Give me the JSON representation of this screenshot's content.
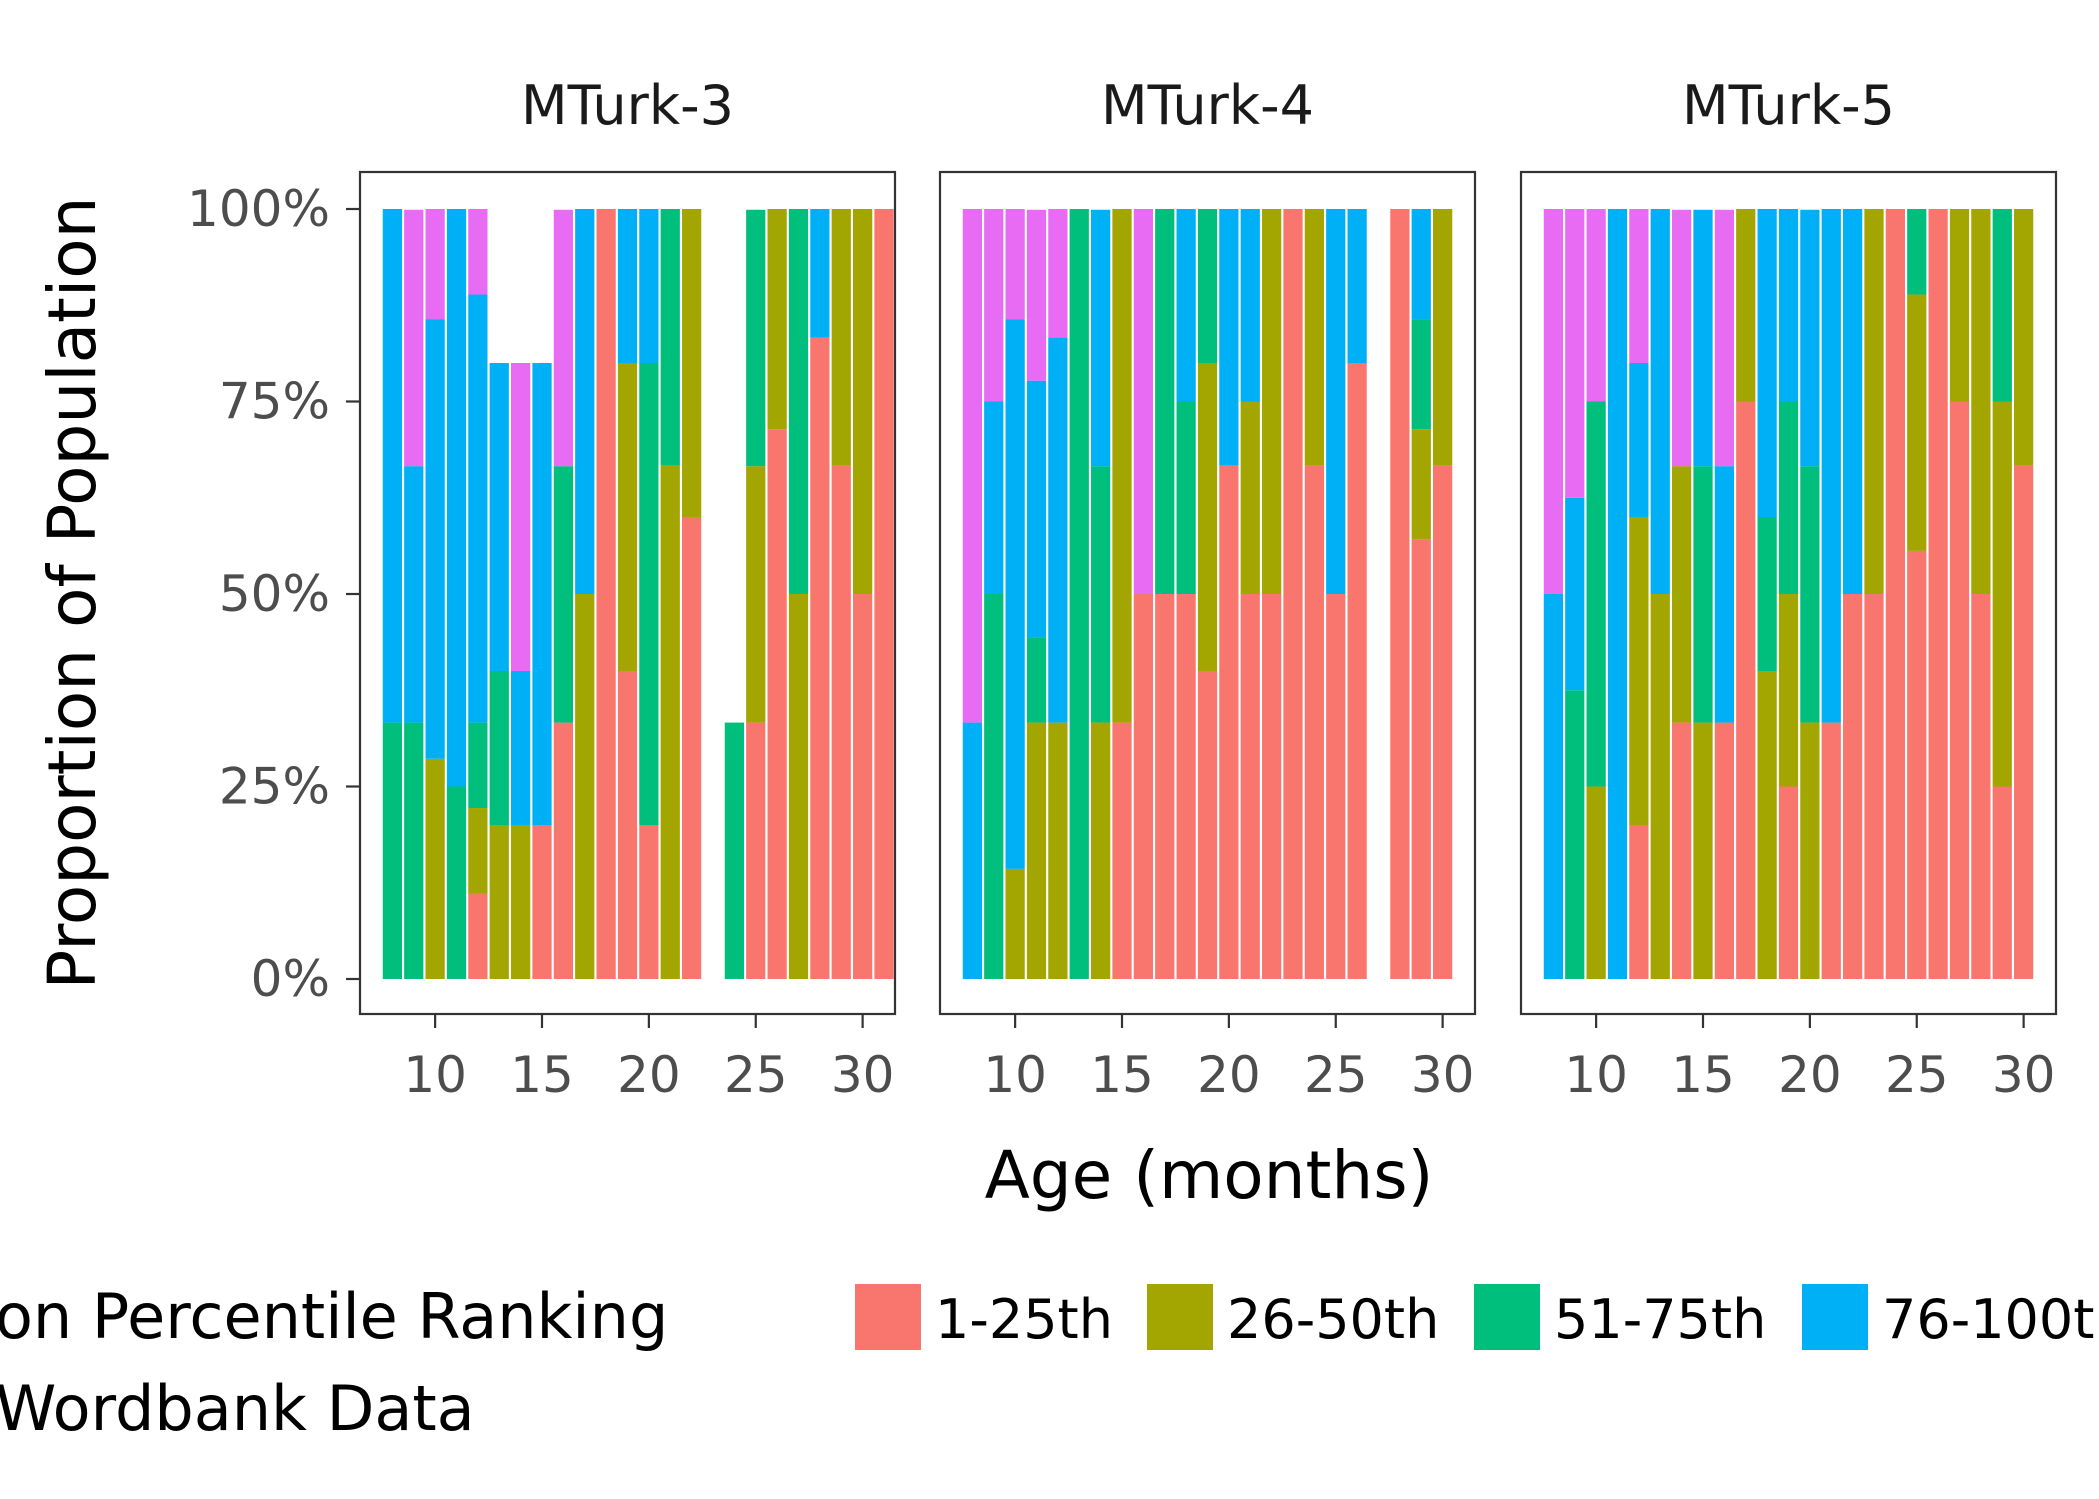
{
  "chart_data": {
    "type": "bar",
    "stacked": true,
    "xlabel": "Age (months)",
    "ylabel": "Proportion of Population",
    "ylim": [
      0,
      1
    ],
    "y_ticks": [
      "0%",
      "25%",
      "50%",
      "75%",
      "100%"
    ],
    "y_tick_values": [
      0,
      0.25,
      0.5,
      0.75,
      1
    ],
    "xlim": [
      7,
      31
    ],
    "x_ticks": [
      10,
      15,
      20,
      25,
      30
    ],
    "legend": {
      "title_lines": [
        "on Percentile Ranking",
        "Wordbank Data"
      ],
      "placement": "bottom",
      "entries": [
        {
          "label": "1-25th",
          "color": "#F8766D"
        },
        {
          "label": "26-50th",
          "color": "#A3A500"
        },
        {
          "label": "51-75th",
          "color": "#00BF7D"
        },
        {
          "label": "76-100t",
          "color": "#00B0F6"
        }
      ]
    },
    "series_colors": [
      "#F8766D",
      "#A3A500",
      "#00BF7D",
      "#00B0F6",
      "#E76BF3"
    ],
    "stack_order_note": "",
    "facets": [
      {
        "title": "MTurk-3",
        "bars": [
          {
            "age": 8,
            "props": [
              0,
              0,
              0.333,
              0.667,
              0
            ]
          },
          {
            "age": 9,
            "props": [
              0,
              0,
              0.333,
              0.333,
              0.333
            ]
          },
          {
            "age": 10,
            "props": [
              0,
              0.286,
              0,
              0.571,
              0.143
            ]
          },
          {
            "age": 11,
            "props": [
              0,
              0,
              0.25,
              0.75,
              0
            ]
          },
          {
            "age": 12,
            "props": [
              0.111,
              0.111,
              0.111,
              0.556,
              0.111
            ]
          },
          {
            "age": 13,
            "props": [
              0,
              0.2,
              0.2,
              0.4,
              0
            ]
          },
          {
            "age": 14,
            "props": [
              0,
              0.2,
              0,
              0.2,
              0.4
            ]
          },
          {
            "age": 15,
            "props": [
              0.2,
              0,
              0,
              0.6,
              0
            ]
          },
          {
            "age": 16,
            "props": [
              0.333,
              0,
              0.333,
              0,
              0.333
            ]
          },
          {
            "age": 17,
            "props": [
              0,
              0.5,
              0,
              0.5,
              0
            ]
          },
          {
            "age": 18,
            "props": [
              1,
              0,
              0,
              0,
              0
            ]
          },
          {
            "age": 19,
            "props": [
              0.4,
              0.4,
              0,
              0.2,
              0
            ]
          },
          {
            "age": 20,
            "props": [
              0.2,
              0,
              0.6,
              0.2,
              0
            ]
          },
          {
            "age": 21,
            "props": [
              0,
              0.667,
              0.333,
              0,
              0
            ]
          },
          {
            "age": 22,
            "props": [
              0.6,
              0.4,
              0,
              0,
              0
            ]
          },
          {
            "age": 24,
            "props": [
              0,
              0,
              0.333,
              0,
              0
            ]
          },
          {
            "age": 25,
            "props": [
              0.333,
              0.333,
              0.333,
              0,
              0
            ]
          },
          {
            "age": 26,
            "props": [
              0.714,
              0.286,
              0,
              0,
              0
            ]
          },
          {
            "age": 27,
            "props": [
              0,
              0.5,
              0.5,
              0,
              0
            ]
          },
          {
            "age": 28,
            "props": [
              0.833,
              0,
              0,
              0.167,
              0
            ]
          },
          {
            "age": 29,
            "props": [
              0.667,
              0.333,
              0,
              0,
              0
            ]
          },
          {
            "age": 30,
            "props": [
              0.5,
              0.5,
              0,
              0,
              0
            ]
          },
          {
            "age": 31,
            "props": [
              1,
              0,
              0,
              0,
              0
            ]
          }
        ]
      },
      {
        "title": "MTurk-4",
        "bars": [
          {
            "age": 8,
            "props": [
              0,
              0,
              0,
              0.333,
              0.667
            ]
          },
          {
            "age": 9,
            "props": [
              0,
              0,
              0.5,
              0.25,
              0.25
            ]
          },
          {
            "age": 10,
            "props": [
              0,
              0.143,
              0,
              0.714,
              0.143
            ]
          },
          {
            "age": 11,
            "props": [
              0,
              0.333,
              0.111,
              0.333,
              0.222
            ]
          },
          {
            "age": 12,
            "props": [
              0,
              0.333,
              0,
              0.5,
              0.167
            ]
          },
          {
            "age": 13,
            "props": [
              0,
              0,
              1,
              0,
              0
            ]
          },
          {
            "age": 14,
            "props": [
              0,
              0.333,
              0.333,
              0.333,
              0
            ]
          },
          {
            "age": 15,
            "props": [
              0.333,
              0.667,
              0,
              0,
              0
            ]
          },
          {
            "age": 16,
            "props": [
              0.5,
              0,
              0,
              0,
              0.5
            ]
          },
          {
            "age": 17,
            "props": [
              0.5,
              0,
              0.5,
              0,
              0
            ]
          },
          {
            "age": 18,
            "props": [
              0.5,
              0,
              0.25,
              0.25,
              0
            ]
          },
          {
            "age": 19,
            "props": [
              0.4,
              0.4,
              0.2,
              0,
              0
            ]
          },
          {
            "age": 20,
            "props": [
              0.667,
              0,
              0,
              0.333,
              0
            ]
          },
          {
            "age": 21,
            "props": [
              0.5,
              0.25,
              0,
              0.25,
              0
            ]
          },
          {
            "age": 22,
            "props": [
              0.5,
              0.5,
              0,
              0,
              0
            ]
          },
          {
            "age": 23,
            "props": [
              1,
              0,
              0,
              0,
              0
            ]
          },
          {
            "age": 24,
            "props": [
              0.667,
              0.333,
              0,
              0,
              0
            ]
          },
          {
            "age": 25,
            "props": [
              0.5,
              0,
              0,
              0.5,
              0
            ]
          },
          {
            "age": 26,
            "props": [
              0.8,
              0,
              0,
              0.2,
              0
            ]
          },
          {
            "age": 28,
            "props": [
              1,
              0,
              0,
              0,
              0
            ]
          },
          {
            "age": 29,
            "props": [
              0.571,
              0.143,
              0.143,
              0.143,
              0
            ]
          },
          {
            "age": 30,
            "props": [
              0.667,
              0.333,
              0,
              0,
              0
            ]
          }
        ]
      },
      {
        "title": "MTurk-5",
        "bars": [
          {
            "age": 8,
            "props": [
              0,
              0,
              0,
              0.5,
              0.5
            ]
          },
          {
            "age": 9,
            "props": [
              0,
              0,
              0.375,
              0.25,
              0.375
            ]
          },
          {
            "age": 10,
            "props": [
              0,
              0.25,
              0.5,
              0,
              0.25
            ]
          },
          {
            "age": 11,
            "props": [
              0,
              0,
              0,
              1,
              0
            ]
          },
          {
            "age": 12,
            "props": [
              0.2,
              0.4,
              0,
              0.2,
              0.2
            ]
          },
          {
            "age": 13,
            "props": [
              0,
              0.5,
              0,
              0.5,
              0
            ]
          },
          {
            "age": 14,
            "props": [
              0.333,
              0.333,
              0,
              0,
              0.333
            ]
          },
          {
            "age": 15,
            "props": [
              0,
              0.333,
              0.333,
              0.333,
              0
            ]
          },
          {
            "age": 16,
            "props": [
              0.333,
              0,
              0,
              0.333,
              0.333
            ]
          },
          {
            "age": 17,
            "props": [
              0.75,
              0.25,
              0,
              0,
              0
            ]
          },
          {
            "age": 18,
            "props": [
              0,
              0.4,
              0.2,
              0.4,
              0
            ]
          },
          {
            "age": 19,
            "props": [
              0.25,
              0.25,
              0.25,
              0.25,
              0
            ]
          },
          {
            "age": 20,
            "props": [
              0,
              0.333,
              0.333,
              0.333,
              0
            ]
          },
          {
            "age": 21,
            "props": [
              0.333,
              0,
              0,
              0.667,
              0
            ]
          },
          {
            "age": 22,
            "props": [
              0.5,
              0,
              0,
              0.5,
              0
            ]
          },
          {
            "age": 23,
            "props": [
              0.5,
              0.5,
              0,
              0,
              0
            ]
          },
          {
            "age": 24,
            "props": [
              1,
              0,
              0,
              0,
              0
            ]
          },
          {
            "age": 25,
            "props": [
              0.556,
              0.333,
              0.111,
              0,
              0
            ]
          },
          {
            "age": 26,
            "props": [
              1,
              0,
              0,
              0,
              0
            ]
          },
          {
            "age": 27,
            "props": [
              0.75,
              0.25,
              0,
              0,
              0
            ]
          },
          {
            "age": 28,
            "props": [
              0.5,
              0.5,
              0,
              0,
              0
            ]
          },
          {
            "age": 29,
            "props": [
              0.25,
              0.5,
              0.25,
              0,
              0
            ]
          },
          {
            "age": 30,
            "props": [
              0.667,
              0.333,
              0,
              0,
              0
            ]
          }
        ]
      }
    ]
  }
}
